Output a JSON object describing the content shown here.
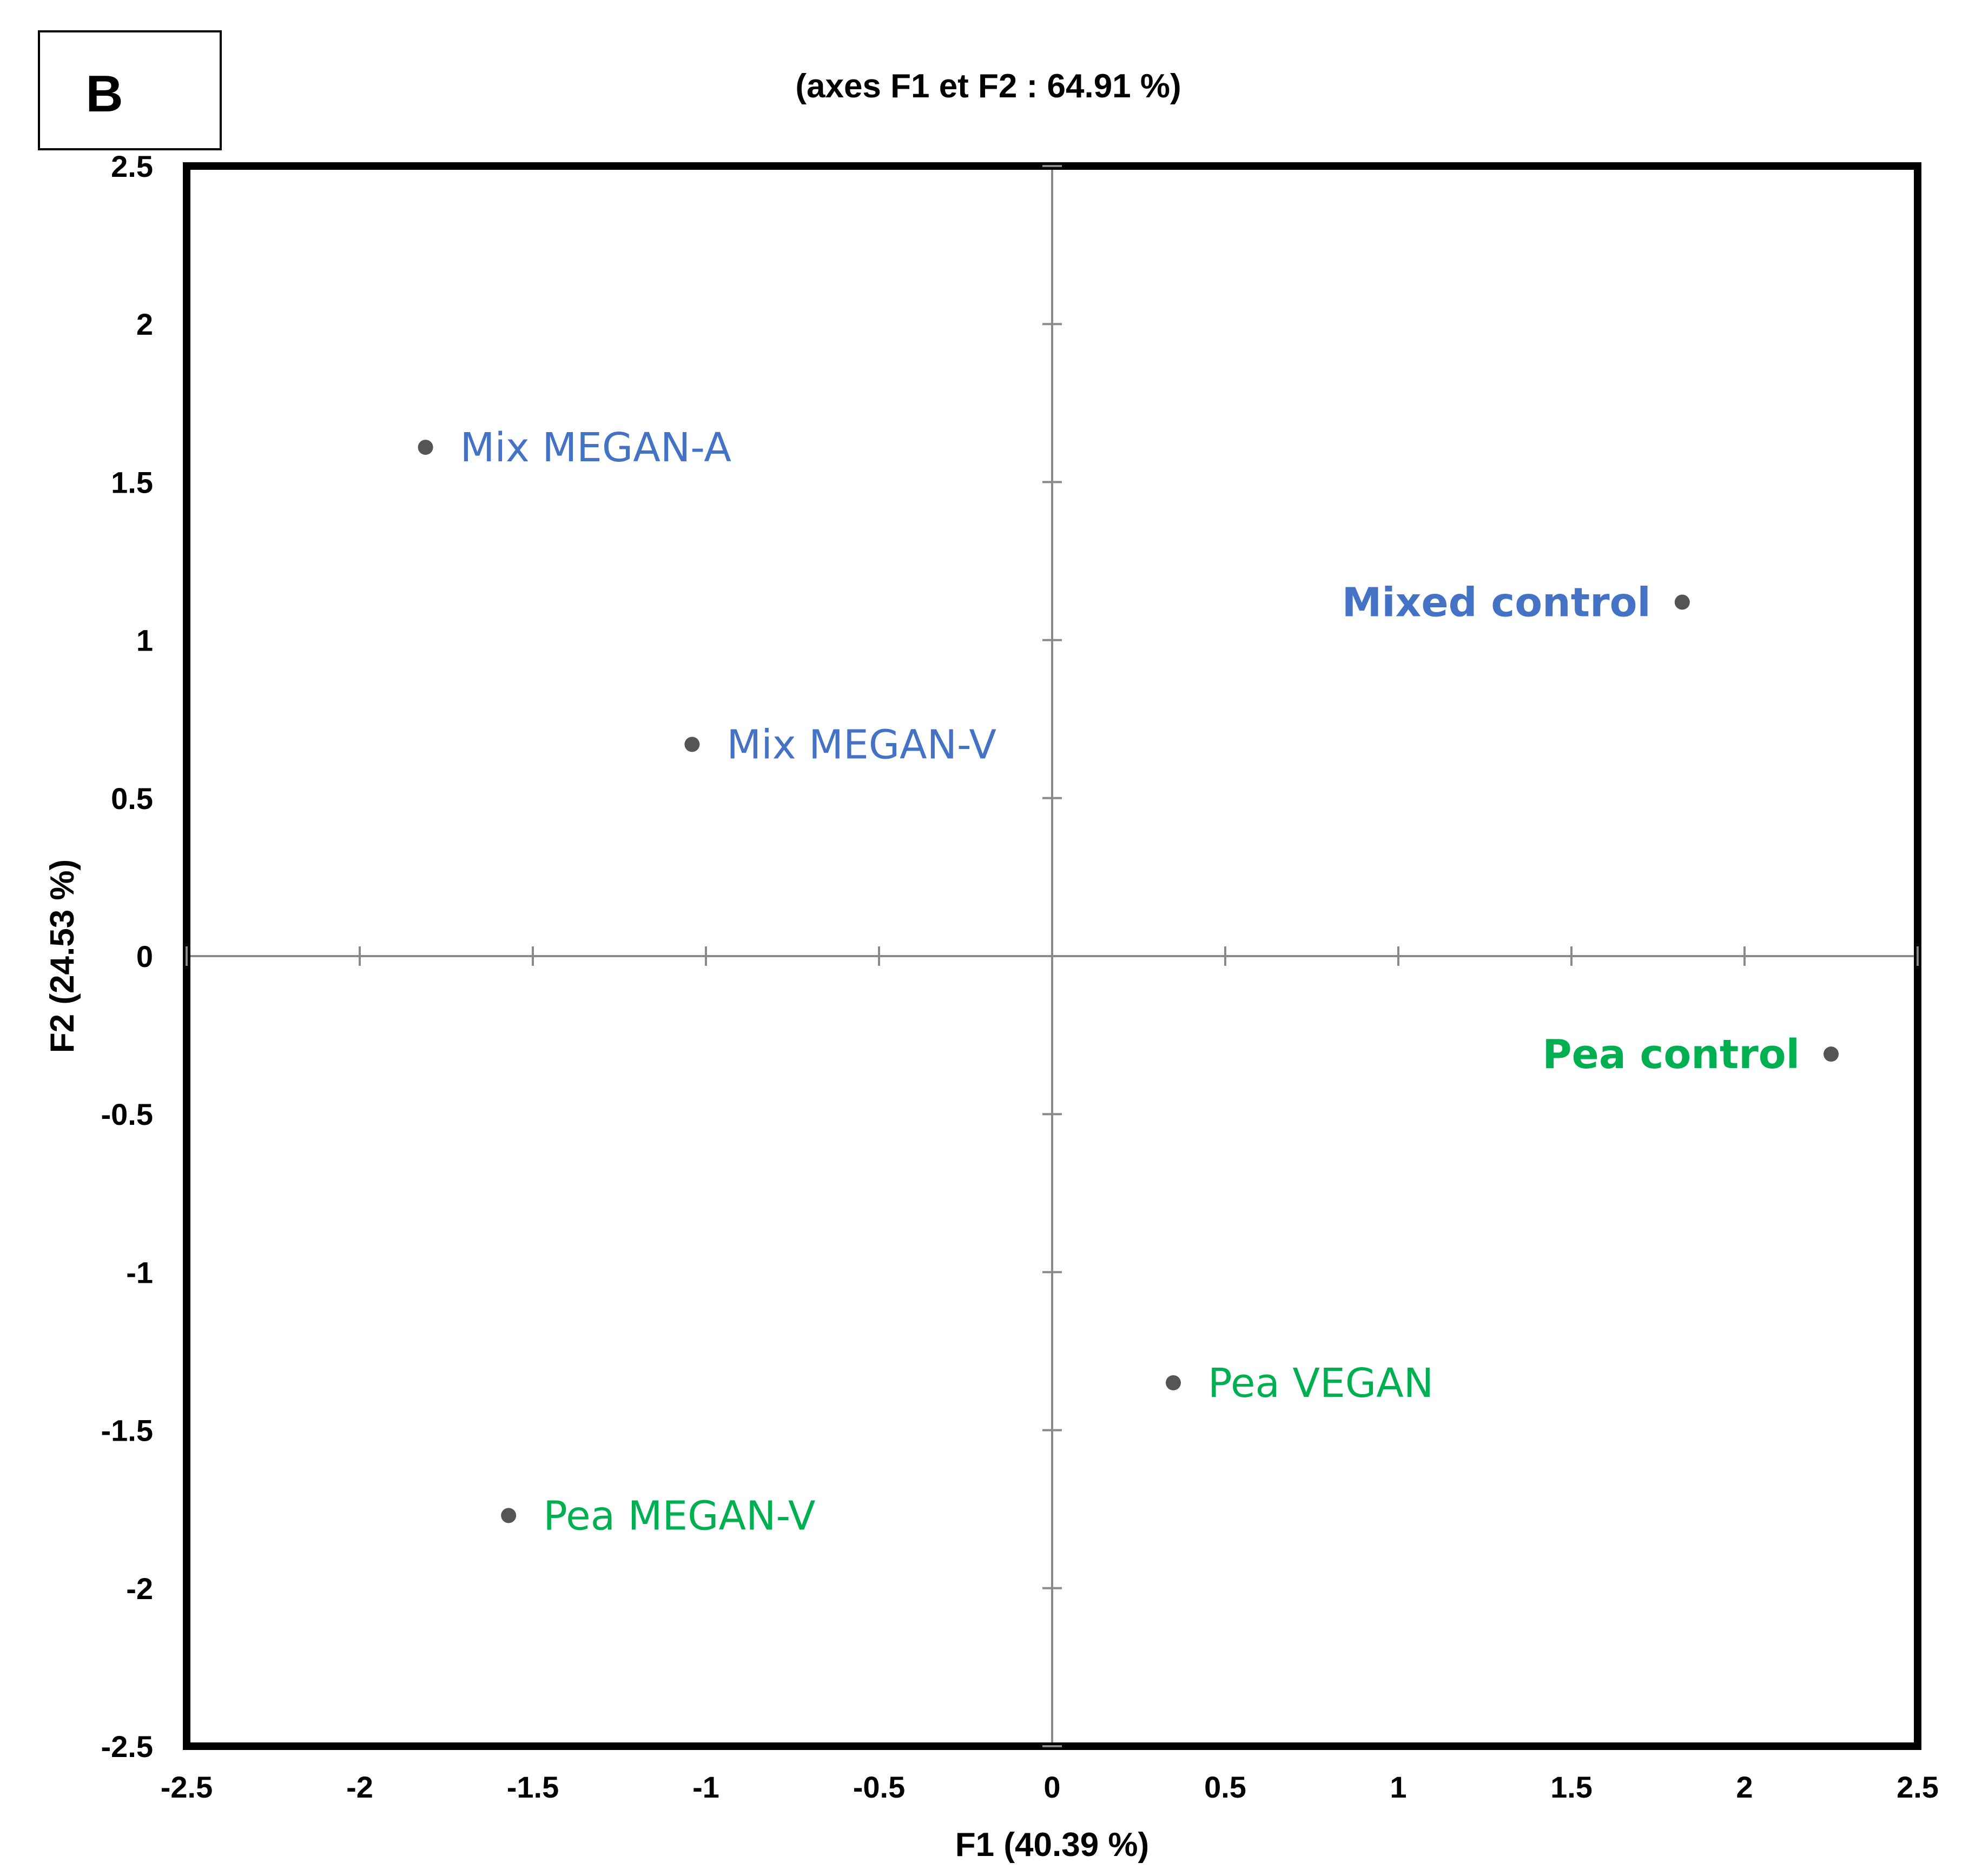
{
  "panel_label": "B",
  "colors": {
    "mix": "#4472C4",
    "pea": "#00B050",
    "marker": "#555555"
  },
  "chart_data": {
    "type": "scatter",
    "title": "(axes F1 et F2 : 64.91 %)",
    "xlabel": "F1 (40.39 %)",
    "ylabel": "F2 (24.53 %)",
    "xlim": [
      -2.5,
      2.5
    ],
    "ylim": [
      -2.5,
      2.5
    ],
    "xticks": [
      "-2.5",
      "-2",
      "-1.5",
      "-1",
      "-0.5",
      "0",
      "0.5",
      "1",
      "1.5",
      "2",
      "2.5"
    ],
    "yticks": [
      "-2.5",
      "-2",
      "-1.5",
      "-1",
      "-0.5",
      "0",
      "0.5",
      "1",
      "1.5",
      "2",
      "2.5"
    ],
    "grid": false,
    "points": [
      {
        "label": "Mix MEGAN-A",
        "x": -1.81,
        "y": 1.61,
        "group": "mix",
        "bold": false,
        "label_side": "right"
      },
      {
        "label": "Mix MEGAN-V",
        "x": -1.04,
        "y": 0.67,
        "group": "mix",
        "bold": false,
        "label_side": "right"
      },
      {
        "label": "Mixed control",
        "x": 1.82,
        "y": 1.12,
        "group": "mix",
        "bold": true,
        "label_side": "left"
      },
      {
        "label": "Pea control",
        "x": 2.25,
        "y": -0.31,
        "group": "pea",
        "bold": true,
        "label_side": "left"
      },
      {
        "label": "Pea VEGAN",
        "x": 0.35,
        "y": -1.35,
        "group": "pea",
        "bold": false,
        "label_side": "right"
      },
      {
        "label": "Pea MEGAN-V",
        "x": -1.57,
        "y": -1.77,
        "group": "pea",
        "bold": false,
        "label_side": "right"
      }
    ]
  }
}
